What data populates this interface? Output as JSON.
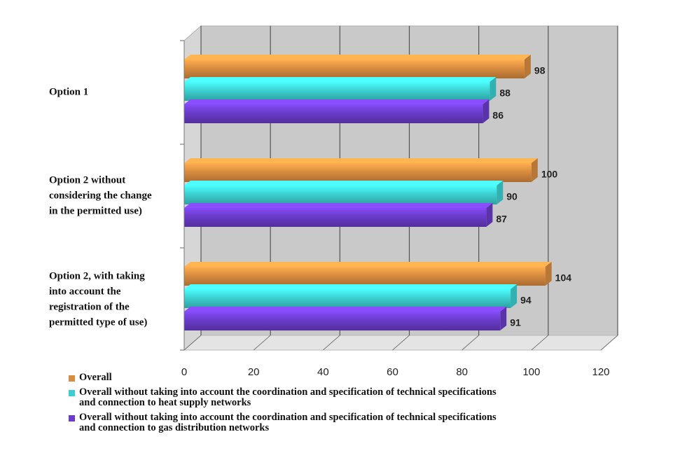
{
  "chart_data": {
    "type": "bar",
    "orientation": "horizontal",
    "three_d": true,
    "categories": [
      [
        "Option 1"
      ],
      [
        "Option 2 without",
        "considering the change",
        "in the permitted use)"
      ],
      [
        "Option 2, with taking",
        "into account the",
        "registration of the",
        "permitted type of use)"
      ]
    ],
    "series": [
      {
        "name": "Overall",
        "values": [
          98,
          100,
          104
        ],
        "color": "#d98c3f"
      },
      {
        "name": "Overall without taking into account the coordination and specification of technical specifications and connection to heat supply networks",
        "values": [
          88,
          90,
          94
        ],
        "color": "#3ccfcf"
      },
      {
        "name": "Overall without taking into account the coordination and specification of technical specifications and connection to gas distribution networks",
        "values": [
          86,
          87,
          91
        ],
        "color": "#6a3cc9"
      }
    ],
    "legend_lines": [
      [
        "Overall"
      ],
      [
        "Overall without taking into account the coordination and specification of technical specifications",
        "and connection to heat supply networks"
      ],
      [
        "Overall without taking into account the coordination and specification of technical specifications",
        "and connection to gas distribution networks"
      ]
    ],
    "xticks": [
      "0",
      "20",
      "40",
      "60",
      "80",
      "100",
      "120"
    ],
    "xlim": [
      0,
      120
    ],
    "grid": true,
    "legend_position": "bottom"
  }
}
